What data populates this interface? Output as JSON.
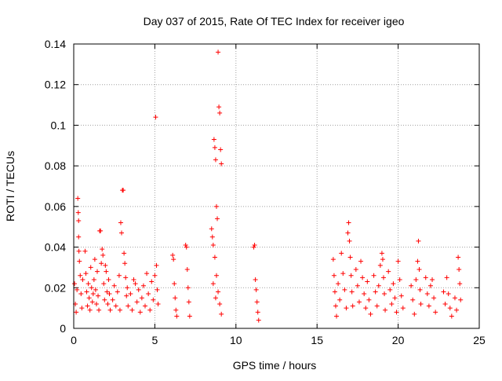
{
  "chart_data": {
    "type": "scatter",
    "title": "Day 037 of 2015, Rate Of TEC Index for receiver igeo",
    "xlabel": "GPS time / hours",
    "ylabel": "ROTI / TECUs",
    "xlim": [
      0,
      25
    ],
    "ylim": [
      0,
      0.14
    ],
    "xticks": [
      0,
      5,
      10,
      15,
      20,
      25
    ],
    "xtick_labels": [
      "0",
      "5",
      "10",
      "15",
      "20",
      "25"
    ],
    "yticks": [
      0,
      0.02,
      0.04,
      0.06,
      0.08,
      0.1,
      0.12,
      0.14
    ],
    "ytick_labels": [
      "0",
      "0.02",
      "0.04",
      "0.06",
      "0.08",
      "0.1",
      "0.12",
      "0.14"
    ],
    "grid": true,
    "marker": "plus",
    "color": "#ff0000",
    "series": [
      {
        "points": [
          [
            0.05,
            0.022
          ],
          [
            0.1,
            0.012
          ],
          [
            0.15,
            0.008
          ],
          [
            0.2,
            0.019
          ],
          [
            0.25,
            0.064
          ],
          [
            0.28,
            0.057
          ],
          [
            0.3,
            0.045
          ],
          [
            0.32,
            0.038
          ],
          [
            0.35,
            0.033
          ],
          [
            0.4,
            0.026
          ],
          [
            0.45,
            0.017
          ],
          [
            0.5,
            0.01
          ],
          [
            0.55,
            0.024
          ],
          [
            0.3,
            0.053
          ],
          [
            0.7,
            0.038
          ],
          [
            0.75,
            0.027
          ],
          [
            0.8,
            0.018
          ],
          [
            0.85,
            0.011
          ],
          [
            0.9,
            0.022
          ],
          [
            0.95,
            0.015
          ],
          [
            1.0,
            0.009
          ],
          [
            1.05,
            0.03
          ],
          [
            1.1,
            0.02
          ],
          [
            1.15,
            0.013
          ],
          [
            1.2,
            0.017
          ],
          [
            1.25,
            0.024
          ],
          [
            1.3,
            0.034
          ],
          [
            1.35,
            0.019
          ],
          [
            1.4,
            0.012
          ],
          [
            1.45,
            0.028
          ],
          [
            1.5,
            0.016
          ],
          [
            1.55,
            0.009
          ],
          [
            1.6,
            0.048
          ],
          [
            1.65,
            0.048
          ],
          [
            1.7,
            0.032
          ],
          [
            1.75,
            0.039
          ],
          [
            1.8,
            0.036
          ],
          [
            1.85,
            0.022
          ],
          [
            1.9,
            0.014
          ],
          [
            1.95,
            0.031
          ],
          [
            2.0,
            0.028
          ],
          [
            2.05,
            0.018
          ],
          [
            2.1,
            0.012
          ],
          [
            2.15,
            0.024
          ],
          [
            2.2,
            0.017
          ],
          [
            2.25,
            0.009
          ],
          [
            2.4,
            0.014
          ],
          [
            2.5,
            0.021
          ],
          [
            2.6,
            0.011
          ],
          [
            2.7,
            0.018
          ],
          [
            2.8,
            0.026
          ],
          [
            2.85,
            0.009
          ],
          [
            2.9,
            0.052
          ],
          [
            2.95,
            0.047
          ],
          [
            3.0,
            0.068
          ],
          [
            3.05,
            0.068
          ],
          [
            3.1,
            0.037
          ],
          [
            3.15,
            0.032
          ],
          [
            3.2,
            0.025
          ],
          [
            3.25,
            0.016
          ],
          [
            3.3,
            0.02
          ],
          [
            3.35,
            0.011
          ],
          [
            3.5,
            0.017
          ],
          [
            3.6,
            0.009
          ],
          [
            3.7,
            0.024
          ],
          [
            3.8,
            0.022
          ],
          [
            3.9,
            0.013
          ],
          [
            4.0,
            0.019
          ],
          [
            4.1,
            0.008
          ],
          [
            4.2,
            0.015
          ],
          [
            4.3,
            0.021
          ],
          [
            4.4,
            0.011
          ],
          [
            4.5,
            0.027
          ],
          [
            4.6,
            0.017
          ],
          [
            4.7,
            0.009
          ],
          [
            4.8,
            0.023
          ],
          [
            4.9,
            0.014
          ],
          [
            5.0,
            0.026
          ],
          [
            5.05,
            0.104
          ],
          [
            5.1,
            0.031
          ],
          [
            5.15,
            0.019
          ],
          [
            5.2,
            0.012
          ],
          [
            6.1,
            0.036
          ],
          [
            6.15,
            0.034
          ],
          [
            6.2,
            0.022
          ],
          [
            6.25,
            0.015
          ],
          [
            6.3,
            0.009
          ],
          [
            6.35,
            0.006
          ],
          [
            6.9,
            0.041
          ],
          [
            6.95,
            0.04
          ],
          [
            7.0,
            0.029
          ],
          [
            7.05,
            0.02
          ],
          [
            7.1,
            0.013
          ],
          [
            7.15,
            0.006
          ],
          [
            8.5,
            0.049
          ],
          [
            8.55,
            0.045
          ],
          [
            8.6,
            0.041
          ],
          [
            8.65,
            0.093
          ],
          [
            8.7,
            0.089
          ],
          [
            8.75,
            0.083
          ],
          [
            8.8,
            0.06
          ],
          [
            8.85,
            0.054
          ],
          [
            8.9,
            0.136
          ],
          [
            8.95,
            0.109
          ],
          [
            9.0,
            0.106
          ],
          [
            9.05,
            0.088
          ],
          [
            9.1,
            0.081
          ],
          [
            8.7,
            0.035
          ],
          [
            8.8,
            0.026
          ],
          [
            8.9,
            0.018
          ],
          [
            9.0,
            0.012
          ],
          [
            9.1,
            0.007
          ],
          [
            8.6,
            0.022
          ],
          [
            8.75,
            0.015
          ],
          [
            11.1,
            0.04
          ],
          [
            11.15,
            0.041
          ],
          [
            11.2,
            0.024
          ],
          [
            11.25,
            0.019
          ],
          [
            11.3,
            0.013
          ],
          [
            11.35,
            0.008
          ],
          [
            11.4,
            0.004
          ],
          [
            16.0,
            0.034
          ],
          [
            16.05,
            0.026
          ],
          [
            16.1,
            0.018
          ],
          [
            16.15,
            0.011
          ],
          [
            16.2,
            0.006
          ],
          [
            16.3,
            0.022
          ],
          [
            16.4,
            0.014
          ],
          [
            16.5,
            0.037
          ],
          [
            16.6,
            0.027
          ],
          [
            16.7,
            0.019
          ],
          [
            16.8,
            0.01
          ],
          [
            16.9,
            0.047
          ],
          [
            16.95,
            0.052
          ],
          [
            17.0,
            0.043
          ],
          [
            17.05,
            0.035
          ],
          [
            17.1,
            0.026
          ],
          [
            17.15,
            0.018
          ],
          [
            17.2,
            0.011
          ],
          [
            17.4,
            0.029
          ],
          [
            17.5,
            0.021
          ],
          [
            17.6,
            0.013
          ],
          [
            17.7,
            0.033
          ],
          [
            17.8,
            0.025
          ],
          [
            17.9,
            0.017
          ],
          [
            18.0,
            0.01
          ],
          [
            18.1,
            0.023
          ],
          [
            18.2,
            0.014
          ],
          [
            18.3,
            0.007
          ],
          [
            18.5,
            0.026
          ],
          [
            18.6,
            0.018
          ],
          [
            18.7,
            0.011
          ],
          [
            18.8,
            0.021
          ],
          [
            18.9,
            0.031
          ],
          [
            19.0,
            0.037
          ],
          [
            19.05,
            0.034
          ],
          [
            19.1,
            0.025
          ],
          [
            19.15,
            0.017
          ],
          [
            19.2,
            0.009
          ],
          [
            19.4,
            0.028
          ],
          [
            19.5,
            0.019
          ],
          [
            19.6,
            0.012
          ],
          [
            19.7,
            0.022
          ],
          [
            19.8,
            0.015
          ],
          [
            19.9,
            0.008
          ],
          [
            20.0,
            0.033
          ],
          [
            20.1,
            0.024
          ],
          [
            20.2,
            0.016
          ],
          [
            20.3,
            0.01
          ],
          [
            20.8,
            0.021
          ],
          [
            20.9,
            0.014
          ],
          [
            21.0,
            0.007
          ],
          [
            21.1,
            0.024
          ],
          [
            21.2,
            0.033
          ],
          [
            21.25,
            0.043
          ],
          [
            21.3,
            0.029
          ],
          [
            21.35,
            0.019
          ],
          [
            21.4,
            0.012
          ],
          [
            21.7,
            0.025
          ],
          [
            21.8,
            0.017
          ],
          [
            21.9,
            0.011
          ],
          [
            22.0,
            0.021
          ],
          [
            22.1,
            0.024
          ],
          [
            22.2,
            0.015
          ],
          [
            22.3,
            0.008
          ],
          [
            22.8,
            0.018
          ],
          [
            22.9,
            0.012
          ],
          [
            23.0,
            0.025
          ],
          [
            23.1,
            0.017
          ],
          [
            23.2,
            0.01
          ],
          [
            23.3,
            0.006
          ],
          [
            23.5,
            0.015
          ],
          [
            23.6,
            0.009
          ],
          [
            23.7,
            0.035
          ],
          [
            23.75,
            0.029
          ],
          [
            23.8,
            0.022
          ],
          [
            23.85,
            0.014
          ]
        ]
      }
    ]
  }
}
